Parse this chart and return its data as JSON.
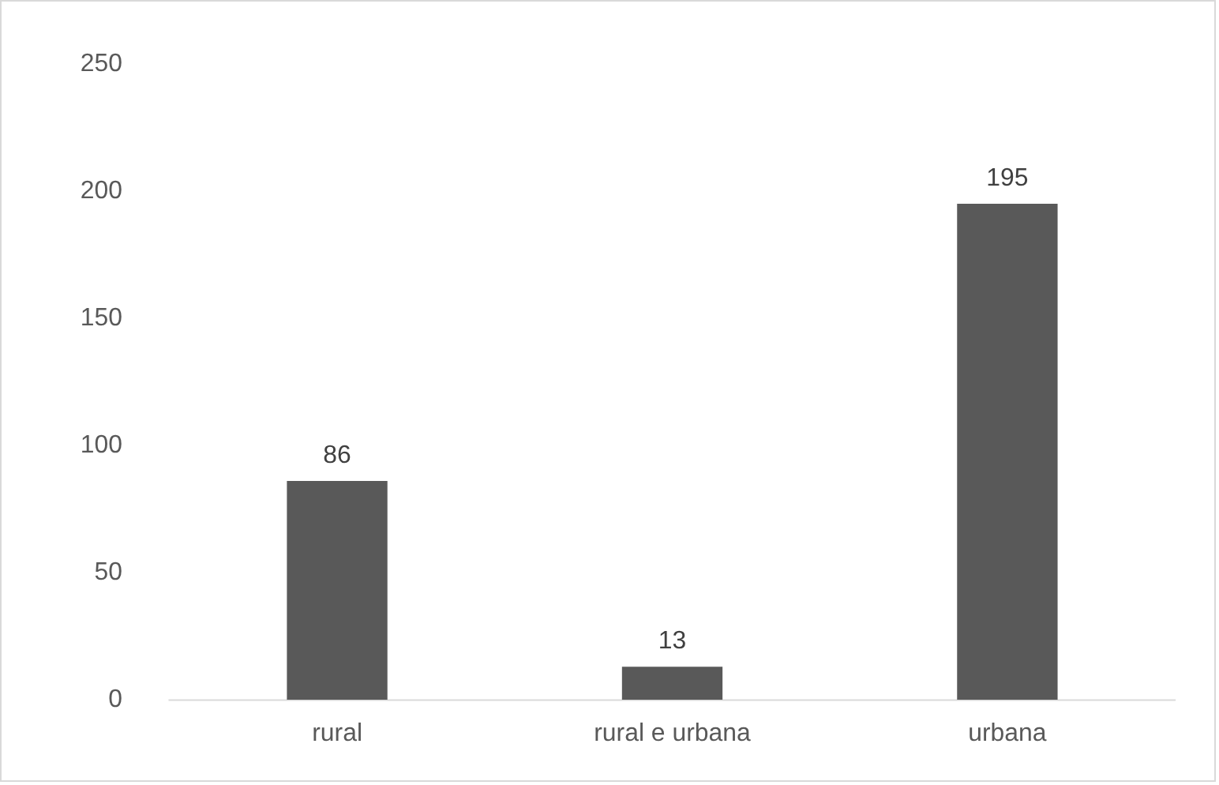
{
  "chart_data": {
    "type": "bar",
    "categories": [
      "rural",
      "rural e urbana",
      "urbana"
    ],
    "values": [
      86,
      13,
      195
    ],
    "color": "#595959",
    "ylim": [
      0,
      250
    ],
    "yticks": [
      0,
      50,
      100,
      150,
      200,
      250
    ],
    "grid": false,
    "legend": false,
    "data_labels": true
  }
}
